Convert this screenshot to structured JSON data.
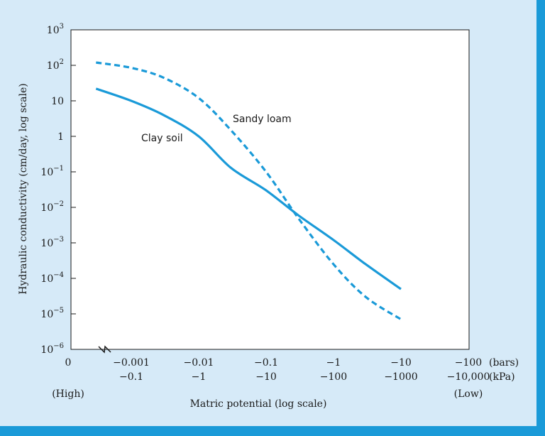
{
  "chart_data": {
    "type": "line",
    "ylabel": "Hydraulic conductivity (cm/day, log scale)",
    "xlabel": "Matric potential (log scale)",
    "y_scale": "log",
    "ylim": [
      1e-06,
      1000
    ],
    "y_ticks": [
      {
        "value": 1000,
        "base": "10",
        "exp": "3"
      },
      {
        "value": 100,
        "base": "10",
        "exp": "2"
      },
      {
        "value": 10,
        "base": "10",
        "exp": ""
      },
      {
        "value": 1,
        "base": "1",
        "exp": ""
      },
      {
        "value": 0.1,
        "base": "10",
        "exp": "−1"
      },
      {
        "value": 0.01,
        "base": "10",
        "exp": "−2"
      },
      {
        "value": 0.001,
        "base": "10",
        "exp": "−3"
      },
      {
        "value": 0.0001,
        "base": "10",
        "exp": "−4"
      },
      {
        "value": 1e-05,
        "base": "10",
        "exp": "−5"
      },
      {
        "value": 1e-06,
        "base": "10",
        "exp": "−6"
      }
    ],
    "x_scale": "log (matric potential, negative values), axis broken after 0",
    "x_ticks": [
      {
        "bars": "0",
        "kpa": "",
        "note": "(High)"
      },
      {
        "bars": "−0.001",
        "kpa": "−0.1",
        "note": ""
      },
      {
        "bars": "−0.01",
        "kpa": "−1",
        "note": ""
      },
      {
        "bars": "−0.1",
        "kpa": "−10",
        "note": ""
      },
      {
        "bars": "−1",
        "kpa": "−100",
        "note": ""
      },
      {
        "bars": "−10",
        "kpa": "−1000",
        "note": ""
      },
      {
        "bars": "−100",
        "kpa": "−10,000",
        "note": "(Low)"
      }
    ],
    "units": {
      "bars": "(bars)",
      "kpa": "(kPa)"
    },
    "series": [
      {
        "name": "Clay soil",
        "style": "solid",
        "color": "#1a9ad8",
        "points": [
          {
            "x_bars": -0.0003,
            "y": 22
          },
          {
            "x_bars": -0.001,
            "y": 10
          },
          {
            "x_bars": -0.003,
            "y": 4
          },
          {
            "x_bars": -0.01,
            "y": 1
          },
          {
            "x_bars": -0.03,
            "y": 0.13
          },
          {
            "x_bars": -0.1,
            "y": 0.03
          },
          {
            "x_bars": -0.3,
            "y": 0.006
          },
          {
            "x_bars": -1,
            "y": 0.0012
          },
          {
            "x_bars": -3,
            "y": 0.00025
          },
          {
            "x_bars": -10,
            "y": 5e-05
          }
        ]
      },
      {
        "name": "Sandy loam",
        "style": "dashed",
        "color": "#1a9ad8",
        "points": [
          {
            "x_bars": -0.0003,
            "y": 120
          },
          {
            "x_bars": -0.001,
            "y": 85
          },
          {
            "x_bars": -0.003,
            "y": 45
          },
          {
            "x_bars": -0.01,
            "y": 12
          },
          {
            "x_bars": -0.03,
            "y": 1.5
          },
          {
            "x_bars": -0.1,
            "y": 0.1
          },
          {
            "x_bars": -0.3,
            "y": 0.005
          },
          {
            "x_bars": -1,
            "y": 0.00025
          },
          {
            "x_bars": -3,
            "y": 3e-05
          },
          {
            "x_bars": -10,
            "y": 7e-06
          }
        ]
      }
    ]
  }
}
